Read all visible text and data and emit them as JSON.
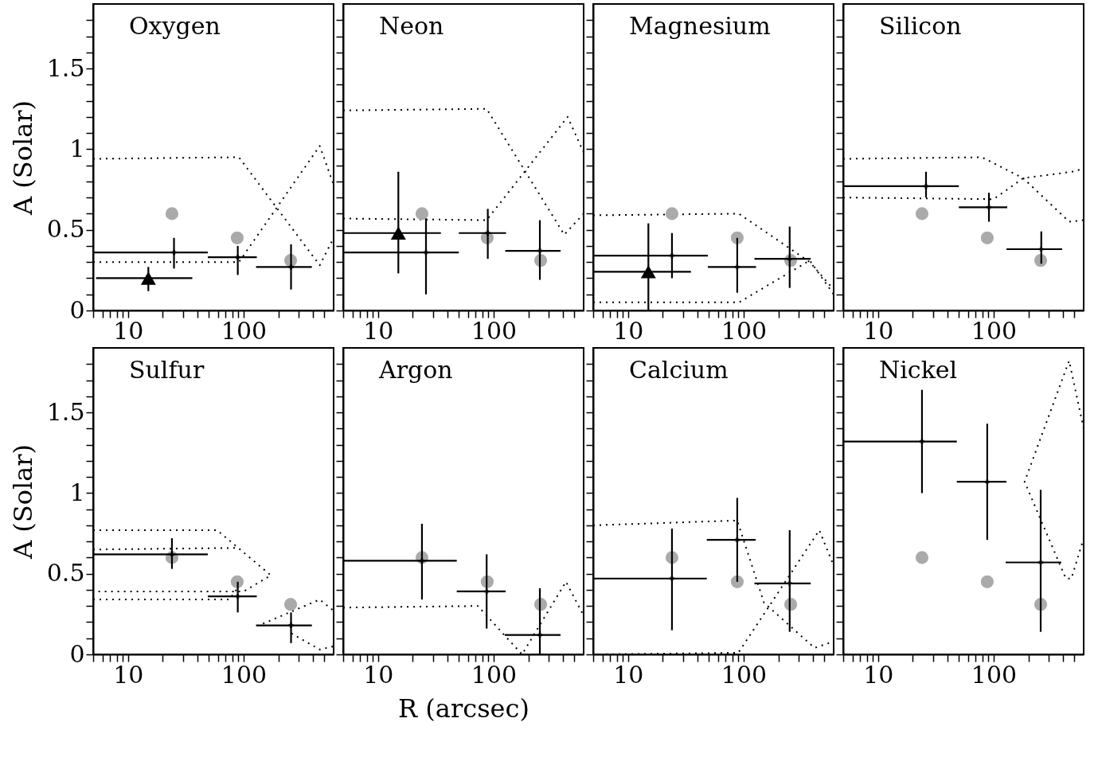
{
  "chart_data": [
    {
      "type": "scatter",
      "title": "Oxygen",
      "ylabel": "A (Solar)",
      "log": "x",
      "xlim": [
        5,
        600
      ],
      "ylim": [
        0,
        1.9
      ],
      "xticks": [
        {
          "value": 5,
          "label": null
        },
        {
          "value": 6,
          "label": null
        },
        {
          "value": 7,
          "label": null
        },
        {
          "value": 8,
          "label": null
        },
        {
          "value": 9,
          "label": null
        },
        10,
        {
          "value": 20,
          "label": null
        },
        {
          "value": 30,
          "label": null
        },
        {
          "value": 40,
          "label": null
        },
        {
          "value": 50,
          "label": null
        },
        {
          "value": 60,
          "label": null
        },
        {
          "value": 70,
          "label": null
        },
        {
          "value": 80,
          "label": null
        },
        {
          "value": 90,
          "label": null
        },
        100,
        {
          "value": 200,
          "label": null
        },
        {
          "value": 300,
          "label": null
        },
        {
          "value": 400,
          "label": null
        },
        {
          "value": 500,
          "label": null
        }
      ],
      "yticks": [
        0,
        {
          "value": 0.1,
          "label": null
        },
        {
          "value": 0.2,
          "label": null
        },
        {
          "value": 0.3,
          "label": null
        },
        {
          "value": 0.4,
          "label": null
        },
        0.5,
        {
          "value": 0.6,
          "label": null
        },
        {
          "value": 0.7,
          "label": null
        },
        {
          "value": 0.8,
          "label": null
        },
        {
          "value": 0.9,
          "label": null
        },
        1,
        {
          "value": 1.1,
          "label": null
        },
        {
          "value": 1.2,
          "label": null
        },
        {
          "value": 1.3,
          "label": null
        },
        {
          "value": 1.4,
          "label": null
        },
        1.5,
        {
          "value": 1.6,
          "label": null
        },
        {
          "value": 1.7,
          "label": null
        },
        {
          "value": 1.8,
          "label": null
        }
      ],
      "series": [
        {
          "type": "line",
          "line_style": "dotted",
          "color": "#000000",
          "x": [
            5,
            91,
            455,
            600
          ],
          "values": [
            0.94,
            0.95,
            0.28,
            0.45
          ]
        },
        {
          "type": "line",
          "line_style": "dotted",
          "color": "#000000",
          "x": [
            5,
            91,
            455,
            600
          ],
          "values": [
            0.3,
            0.3,
            1.02,
            0.78
          ]
        },
        {
          "type": "scatter",
          "marker": "circle",
          "color": "#aaaaaa",
          "x": [
            24,
            88,
            255
          ],
          "values": [
            0.6,
            0.45,
            0.31
          ]
        },
        {
          "type": "scatter",
          "marker": "cross",
          "color": "#000000",
          "x": [
            25,
            89,
            257
          ],
          "values": [
            0.36,
            0.33,
            0.27
          ],
          "xerrors": [
            [
              5,
              49
            ],
            [
              49,
              130
            ],
            [
              128,
              389
            ]
          ],
          "errors": [
            [
              0.26,
              0.45
            ],
            [
              0.22,
              0.4
            ],
            [
              0.13,
              0.41
            ]
          ]
        },
        {
          "type": "scatter",
          "marker": "triangle",
          "color": "#000000",
          "x": [
            15
          ],
          "values": [
            0.2
          ],
          "xerrors": [
            [
              5.3,
              36
            ]
          ],
          "errors": [
            [
              0.12,
              0.27
            ]
          ]
        }
      ]
    },
    {
      "type": "scatter",
      "title": "Neon",
      "tick_labels": "x",
      "log": "x",
      "xlim": [
        5,
        600
      ],
      "ylim": [
        0,
        1.9
      ],
      "xticks": [
        {
          "value": 5,
          "label": null
        },
        {
          "value": 6,
          "label": null
        },
        {
          "value": 7,
          "label": null
        },
        {
          "value": 8,
          "label": null
        },
        {
          "value": 9,
          "label": null
        },
        10,
        {
          "value": 20,
          "label": null
        },
        {
          "value": 30,
          "label": null
        },
        {
          "value": 40,
          "label": null
        },
        {
          "value": 50,
          "label": null
        },
        {
          "value": 60,
          "label": null
        },
        {
          "value": 70,
          "label": null
        },
        {
          "value": 80,
          "label": null
        },
        {
          "value": 90,
          "label": null
        },
        100,
        {
          "value": 200,
          "label": null
        },
        {
          "value": 300,
          "label": null
        },
        {
          "value": 400,
          "label": null
        },
        {
          "value": 500,
          "label": null
        }
      ],
      "yticks": [
        0,
        {
          "value": 0.1,
          "label": null
        },
        {
          "value": 0.2,
          "label": null
        },
        {
          "value": 0.3,
          "label": null
        },
        {
          "value": 0.4,
          "label": null
        },
        0.5,
        {
          "value": 0.6,
          "label": null
        },
        {
          "value": 0.7,
          "label": null
        },
        {
          "value": 0.8,
          "label": null
        },
        {
          "value": 0.9,
          "label": null
        },
        1,
        {
          "value": 1.1,
          "label": null
        },
        {
          "value": 1.2,
          "label": null
        },
        {
          "value": 1.3,
          "label": null
        },
        {
          "value": 1.4,
          "label": null
        },
        1.5,
        {
          "value": 1.6,
          "label": null
        },
        {
          "value": 1.7,
          "label": null
        },
        {
          "value": 1.8,
          "label": null
        }
      ],
      "series": [
        {
          "type": "line",
          "line_style": "dotted",
          "color": "#000000",
          "x": [
            5,
            87,
            408,
            600
          ],
          "values": [
            1.24,
            1.25,
            0.47,
            0.6
          ]
        },
        {
          "type": "line",
          "line_style": "dotted",
          "color": "#000000",
          "x": [
            5,
            87,
            436,
            600
          ],
          "values": [
            0.57,
            0.56,
            1.2,
            0.98
          ]
        },
        {
          "type": "scatter",
          "marker": "circle",
          "color": "#aaaaaa",
          "x": [
            24,
            88,
            255
          ],
          "values": [
            0.6,
            0.45,
            0.31
          ]
        },
        {
          "type": "scatter",
          "marker": "cross",
          "color": "#000000",
          "x": [
            26,
            89,
            251
          ],
          "values": [
            0.36,
            0.48,
            0.37
          ],
          "xerrors": [
            [
              5,
              50
            ],
            [
              50,
              128
            ],
            [
              126,
              379
            ]
          ],
          "errors": [
            [
              0.1,
              0.57
            ],
            [
              0.32,
              0.63
            ],
            [
              0.19,
              0.56
            ]
          ]
        },
        {
          "type": "scatter",
          "marker": "triangle",
          "color": "#000000",
          "x": [
            15
          ],
          "values": [
            0.48
          ],
          "xerrors": [
            [
              5,
              35
            ]
          ],
          "errors": [
            [
              0.23,
              0.86
            ]
          ]
        }
      ]
    },
    {
      "type": "scatter",
      "title": "Magnesium",
      "tick_labels": "x",
      "log": "x",
      "xlim": [
        5,
        600
      ],
      "ylim": [
        0,
        1.9
      ],
      "xticks": [
        {
          "value": 5,
          "label": null
        },
        {
          "value": 6,
          "label": null
        },
        {
          "value": 7,
          "label": null
        },
        {
          "value": 8,
          "label": null
        },
        {
          "value": 9,
          "label": null
        },
        10,
        {
          "value": 20,
          "label": null
        },
        {
          "value": 30,
          "label": null
        },
        {
          "value": 40,
          "label": null
        },
        {
          "value": 50,
          "label": null
        },
        {
          "value": 60,
          "label": null
        },
        {
          "value": 70,
          "label": null
        },
        {
          "value": 80,
          "label": null
        },
        {
          "value": 90,
          "label": null
        },
        100,
        {
          "value": 200,
          "label": null
        },
        {
          "value": 300,
          "label": null
        },
        {
          "value": 400,
          "label": null
        },
        {
          "value": 500,
          "label": null
        }
      ],
      "yticks": [
        0,
        {
          "value": 0.1,
          "label": null
        },
        {
          "value": 0.2,
          "label": null
        },
        {
          "value": 0.3,
          "label": null
        },
        {
          "value": 0.4,
          "label": null
        },
        0.5,
        {
          "value": 0.6,
          "label": null
        },
        {
          "value": 0.7,
          "label": null
        },
        {
          "value": 0.8,
          "label": null
        },
        {
          "value": 0.9,
          "label": null
        },
        1,
        {
          "value": 1.1,
          "label": null
        },
        {
          "value": 1.2,
          "label": null
        },
        {
          "value": 1.3,
          "label": null
        },
        {
          "value": 1.4,
          "label": null
        },
        1.5,
        {
          "value": 1.6,
          "label": null
        },
        {
          "value": 1.7,
          "label": null
        },
        {
          "value": 1.8,
          "label": null
        }
      ],
      "series": [
        {
          "type": "line",
          "line_style": "dotted",
          "color": "#000000",
          "x": [
            5,
            91,
            373,
            600
          ],
          "values": [
            0.59,
            0.6,
            0.3,
            0.13
          ]
        },
        {
          "type": "line",
          "line_style": "dotted",
          "color": "#000000",
          "x": [
            5,
            91,
            373,
            600
          ],
          "values": [
            0.05,
            0.05,
            0.31,
            0.1
          ]
        },
        {
          "type": "scatter",
          "marker": "circle",
          "color": "#aaaaaa",
          "x": [
            24,
            88,
            255
          ],
          "values": [
            0.6,
            0.45,
            0.31
          ]
        },
        {
          "type": "scatter",
          "marker": "cross",
          "color": "#000000",
          "x": [
            24,
            88,
            250
          ],
          "values": [
            0.34,
            0.27,
            0.32
          ],
          "xerrors": [
            [
              5,
              49
            ],
            [
              49,
              128
            ],
            [
              124,
              380
            ]
          ],
          "errors": [
            [
              0.2,
              0.48
            ],
            [
              0.11,
              0.45
            ],
            [
              0.14,
              0.52
            ]
          ]
        },
        {
          "type": "scatter",
          "marker": "triangle",
          "color": "#000000",
          "x": [
            15
          ],
          "values": [
            0.24
          ],
          "xerrors": [
            [
              5,
              35
            ]
          ],
          "errors": [
            [
              0,
              0.54
            ]
          ]
        }
      ]
    },
    {
      "type": "scatter",
      "title": "Silicon",
      "tick_labels": "x",
      "log": "x",
      "xlim": [
        5,
        600
      ],
      "ylim": [
        0,
        1.9
      ],
      "xticks": [
        {
          "value": 5,
          "label": null
        },
        {
          "value": 6,
          "label": null
        },
        {
          "value": 7,
          "label": null
        },
        {
          "value": 8,
          "label": null
        },
        {
          "value": 9,
          "label": null
        },
        10,
        {
          "value": 20,
          "label": null
        },
        {
          "value": 30,
          "label": null
        },
        {
          "value": 40,
          "label": null
        },
        {
          "value": 50,
          "label": null
        },
        {
          "value": 60,
          "label": null
        },
        {
          "value": 70,
          "label": null
        },
        {
          "value": 80,
          "label": null
        },
        {
          "value": 90,
          "label": null
        },
        100,
        {
          "value": 200,
          "label": null
        },
        {
          "value": 300,
          "label": null
        },
        {
          "value": 400,
          "label": null
        },
        {
          "value": 500,
          "label": null
        }
      ],
      "yticks": [
        0,
        {
          "value": 0.1,
          "label": null
        },
        {
          "value": 0.2,
          "label": null
        },
        {
          "value": 0.3,
          "label": null
        },
        {
          "value": 0.4,
          "label": null
        },
        0.5,
        {
          "value": 0.6,
          "label": null
        },
        {
          "value": 0.7,
          "label": null
        },
        {
          "value": 0.8,
          "label": null
        },
        {
          "value": 0.9,
          "label": null
        },
        1,
        {
          "value": 1.1,
          "label": null
        },
        {
          "value": 1.2,
          "label": null
        },
        {
          "value": 1.3,
          "label": null
        },
        {
          "value": 1.4,
          "label": null
        },
        1.5,
        {
          "value": 1.6,
          "label": null
        },
        {
          "value": 1.7,
          "label": null
        },
        {
          "value": 1.8,
          "label": null
        }
      ],
      "series": [
        {
          "type": "line",
          "line_style": "dotted",
          "color": "#000000",
          "x": [
            5,
            79,
            180,
            450,
            600
          ],
          "values": [
            0.94,
            0.95,
            0.82,
            0.55,
            0.56
          ]
        },
        {
          "type": "line",
          "line_style": "dotted",
          "color": "#000000",
          "x": [
            5,
            100,
            180,
            477,
            600
          ],
          "values": [
            0.7,
            0.69,
            0.82,
            0.86,
            0.88
          ]
        },
        {
          "type": "scatter",
          "marker": "circle",
          "color": "#aaaaaa",
          "x": [
            24,
            88,
            255
          ],
          "values": [
            0.6,
            0.45,
            0.31
          ]
        },
        {
          "type": "scatter",
          "marker": "cross",
          "color": "#000000",
          "x": [
            26,
            91,
            258
          ],
          "values": [
            0.77,
            0.64,
            0.38
          ],
          "xerrors": [
            [
              5,
              50
            ],
            [
              50,
              131
            ],
            [
              129,
              391
            ]
          ],
          "errors": [
            [
              0.7,
              0.86
            ],
            [
              0.55,
              0.73
            ],
            [
              0.29,
              0.49
            ]
          ]
        }
      ]
    },
    {
      "type": "scatter",
      "title": "Sulfur",
      "ylabel": "A (Solar)",
      "log": "x",
      "xlim": [
        5,
        600
      ],
      "ylim": [
        0,
        1.9
      ],
      "xticks": [
        {
          "value": 5,
          "label": null
        },
        {
          "value": 6,
          "label": null
        },
        {
          "value": 7,
          "label": null
        },
        {
          "value": 8,
          "label": null
        },
        {
          "value": 9,
          "label": null
        },
        10,
        {
          "value": 20,
          "label": null
        },
        {
          "value": 30,
          "label": null
        },
        {
          "value": 40,
          "label": null
        },
        {
          "value": 50,
          "label": null
        },
        {
          "value": 60,
          "label": null
        },
        {
          "value": 70,
          "label": null
        },
        {
          "value": 80,
          "label": null
        },
        {
          "value": 90,
          "label": null
        },
        100,
        {
          "value": 200,
          "label": null
        },
        {
          "value": 300,
          "label": null
        },
        {
          "value": 400,
          "label": null
        },
        {
          "value": 500,
          "label": null
        }
      ],
      "yticks": [
        0,
        {
          "value": 0.1,
          "label": null
        },
        {
          "value": 0.2,
          "label": null
        },
        {
          "value": 0.3,
          "label": null
        },
        {
          "value": 0.4,
          "label": null
        },
        0.5,
        {
          "value": 0.6,
          "label": null
        },
        {
          "value": 0.7,
          "label": null
        },
        {
          "value": 0.8,
          "label": null
        },
        {
          "value": 0.9,
          "label": null
        },
        1,
        {
          "value": 1.1,
          "label": null
        },
        {
          "value": 1.2,
          "label": null
        },
        {
          "value": 1.3,
          "label": null
        },
        {
          "value": 1.4,
          "label": null
        },
        1.5,
        {
          "value": 1.6,
          "label": null
        },
        {
          "value": 1.7,
          "label": null
        },
        {
          "value": 1.8,
          "label": null
        }
      ],
      "series": [
        {
          "type": "line",
          "line_style": "dotted",
          "color": "#000000",
          "x": [
            5,
            59,
            172,
            100,
            5
          ],
          "values": [
            0.77,
            0.77,
            0.49,
            0.39,
            0.39
          ]
        },
        {
          "type": "line",
          "line_style": "dotted",
          "color": "#000000",
          "x": [
            5,
            89
          ],
          "values": [
            0.65,
            0.66
          ]
        },
        {
          "type": "line",
          "line_style": "dotted",
          "color": "#000000",
          "x": [
            5,
            75,
            95
          ],
          "values": [
            0.34,
            0.34,
            0.44
          ]
        },
        {
          "type": "line",
          "line_style": "dotted",
          "color": "#000000",
          "x": [
            147,
            455,
            600
          ],
          "values": [
            0.19,
            0.34,
            0.27
          ]
        },
        {
          "type": "line",
          "line_style": "dotted",
          "color": "#000000",
          "x": [
            259,
            455,
            600
          ],
          "values": [
            0.13,
            0.03,
            0.05
          ]
        },
        {
          "type": "scatter",
          "marker": "circle",
          "color": "#aaaaaa",
          "x": [
            24,
            88,
            255
          ],
          "values": [
            0.6,
            0.45,
            0.31
          ]
        },
        {
          "type": "scatter",
          "marker": "cross",
          "color": "#000000",
          "x": [
            24,
            89,
            257
          ],
          "values": [
            0.62,
            0.36,
            0.18
          ],
          "xerrors": [
            [
              5,
              49
            ],
            [
              49,
              130
            ],
            [
              128,
              389
            ]
          ],
          "errors": [
            [
              0.53,
              0.72
            ],
            [
              0.26,
              0.45
            ],
            [
              0.07,
              0.26
            ]
          ]
        }
      ]
    },
    {
      "type": "scatter",
      "title": "Argon",
      "xlabel": "R (arcsec)",
      "tick_labels": "x",
      "log": "x",
      "xlim": [
        5,
        600
      ],
      "ylim": [
        0,
        1.9
      ],
      "xticks": [
        {
          "value": 5,
          "label": null
        },
        {
          "value": 6,
          "label": null
        },
        {
          "value": 7,
          "label": null
        },
        {
          "value": 8,
          "label": null
        },
        {
          "value": 9,
          "label": null
        },
        10,
        {
          "value": 20,
          "label": null
        },
        {
          "value": 30,
          "label": null
        },
        {
          "value": 40,
          "label": null
        },
        {
          "value": 50,
          "label": null
        },
        {
          "value": 60,
          "label": null
        },
        {
          "value": 70,
          "label": null
        },
        {
          "value": 80,
          "label": null
        },
        {
          "value": 90,
          "label": null
        },
        100,
        {
          "value": 200,
          "label": null
        },
        {
          "value": 300,
          "label": null
        },
        {
          "value": 400,
          "label": null
        },
        {
          "value": 500,
          "label": null
        }
      ],
      "yticks": [
        0,
        {
          "value": 0.1,
          "label": null
        },
        {
          "value": 0.2,
          "label": null
        },
        {
          "value": 0.3,
          "label": null
        },
        {
          "value": 0.4,
          "label": null
        },
        0.5,
        {
          "value": 0.6,
          "label": null
        },
        {
          "value": 0.7,
          "label": null
        },
        {
          "value": 0.8,
          "label": null
        },
        {
          "value": 0.9,
          "label": null
        },
        1,
        {
          "value": 1.1,
          "label": null
        },
        {
          "value": 1.2,
          "label": null
        },
        {
          "value": 1.3,
          "label": null
        },
        {
          "value": 1.4,
          "label": null
        },
        1.5,
        {
          "value": 1.6,
          "label": null
        },
        {
          "value": 1.7,
          "label": null
        },
        {
          "value": 1.8,
          "label": null
        }
      ],
      "series": [
        {
          "type": "line",
          "line_style": "dotted",
          "color": "#000000",
          "x": [
            5,
            73,
            176,
            422,
            600
          ],
          "values": [
            0.29,
            0.3,
            0,
            0.45,
            0.24
          ]
        },
        {
          "type": "scatter",
          "marker": "circle",
          "color": "#aaaaaa",
          "x": [
            24,
            88,
            255
          ],
          "values": [
            0.6,
            0.45,
            0.31
          ]
        },
        {
          "type": "scatter",
          "marker": "cross",
          "color": "#000000",
          "x": [
            24,
            87,
            251
          ],
          "values": [
            0.58,
            0.39,
            0.12
          ],
          "xerrors": [
            [
              5,
              48
            ],
            [
              48,
              127
            ],
            [
              125,
              379
            ]
          ],
          "errors": [
            [
              0.34,
              0.81
            ],
            [
              0.16,
              0.62
            ],
            [
              0,
              0.41
            ]
          ]
        }
      ]
    },
    {
      "type": "scatter",
      "title": "Calcium",
      "tick_labels": "x",
      "log": "x",
      "xlim": [
        5,
        600
      ],
      "ylim": [
        0,
        1.9
      ],
      "xticks": [
        {
          "value": 5,
          "label": null
        },
        {
          "value": 6,
          "label": null
        },
        {
          "value": 7,
          "label": null
        },
        {
          "value": 8,
          "label": null
        },
        {
          "value": 9,
          "label": null
        },
        10,
        {
          "value": 20,
          "label": null
        },
        {
          "value": 30,
          "label": null
        },
        {
          "value": 40,
          "label": null
        },
        {
          "value": 50,
          "label": null
        },
        {
          "value": 60,
          "label": null
        },
        {
          "value": 70,
          "label": null
        },
        {
          "value": 80,
          "label": null
        },
        {
          "value": 90,
          "label": null
        },
        100,
        {
          "value": 200,
          "label": null
        },
        {
          "value": 300,
          "label": null
        },
        {
          "value": 400,
          "label": null
        },
        {
          "value": 500,
          "label": null
        }
      ],
      "yticks": [
        0,
        {
          "value": 0.1,
          "label": null
        },
        {
          "value": 0.2,
          "label": null
        },
        {
          "value": 0.3,
          "label": null
        },
        {
          "value": 0.4,
          "label": null
        },
        0.5,
        {
          "value": 0.6,
          "label": null
        },
        {
          "value": 0.7,
          "label": null
        },
        {
          "value": 0.8,
          "label": null
        },
        {
          "value": 0.9,
          "label": null
        },
        1,
        {
          "value": 1.1,
          "label": null
        },
        {
          "value": 1.2,
          "label": null
        },
        {
          "value": 1.3,
          "label": null
        },
        {
          "value": 1.4,
          "label": null
        },
        1.5,
        {
          "value": 1.6,
          "label": null
        },
        {
          "value": 1.7,
          "label": null
        },
        {
          "value": 1.8,
          "label": null
        }
      ],
      "series": [
        {
          "type": "line",
          "line_style": "dotted",
          "color": "#000000",
          "x": [
            5,
            88,
            150,
            410,
            600
          ],
          "values": [
            0.8,
            0.83,
            0.32,
            0.04,
            0.08
          ]
        },
        {
          "type": "line",
          "line_style": "dotted",
          "color": "#000000",
          "x": [
            5,
            90,
            451,
            600
          ],
          "values": [
            0,
            0.01,
            0.77,
            0.55
          ]
        },
        {
          "type": "scatter",
          "marker": "circle",
          "color": "#aaaaaa",
          "x": [
            24,
            88,
            255
          ],
          "values": [
            0.6,
            0.45,
            0.31
          ]
        },
        {
          "type": "scatter",
          "marker": "cross",
          "color": "#000000",
          "x": [
            24,
            88,
            250
          ],
          "values": [
            0.47,
            0.71,
            0.44
          ],
          "xerrors": [
            [
              5,
              48
            ],
            [
              48,
              127
            ],
            [
              124,
              380
            ]
          ],
          "errors": [
            [
              0.15,
              0.78
            ],
            [
              0.45,
              0.97
            ],
            [
              0.14,
              0.77
            ]
          ]
        }
      ]
    },
    {
      "type": "scatter",
      "title": "Nickel",
      "tick_labels": "x",
      "log": "x",
      "xlim": [
        5,
        600
      ],
      "ylim": [
        0,
        1.9
      ],
      "xticks": [
        {
          "value": 5,
          "label": null
        },
        {
          "value": 6,
          "label": null
        },
        {
          "value": 7,
          "label": null
        },
        {
          "value": 8,
          "label": null
        },
        {
          "value": 9,
          "label": null
        },
        10,
        {
          "value": 20,
          "label": null
        },
        {
          "value": 30,
          "label": null
        },
        {
          "value": 40,
          "label": null
        },
        {
          "value": 50,
          "label": null
        },
        {
          "value": 60,
          "label": null
        },
        {
          "value": 70,
          "label": null
        },
        {
          "value": 80,
          "label": null
        },
        {
          "value": 90,
          "label": null
        },
        100,
        {
          "value": 200,
          "label": null
        },
        {
          "value": 300,
          "label": null
        },
        {
          "value": 400,
          "label": null
        },
        {
          "value": 500,
          "label": null
        }
      ],
      "yticks": [
        0,
        {
          "value": 0.1,
          "label": null
        },
        {
          "value": 0.2,
          "label": null
        },
        {
          "value": 0.3,
          "label": null
        },
        {
          "value": 0.4,
          "label": null
        },
        0.5,
        {
          "value": 0.6,
          "label": null
        },
        {
          "value": 0.7,
          "label": null
        },
        {
          "value": 0.8,
          "label": null
        },
        {
          "value": 0.9,
          "label": null
        },
        1,
        {
          "value": 1.1,
          "label": null
        },
        {
          "value": 1.2,
          "label": null
        },
        {
          "value": 1.3,
          "label": null
        },
        {
          "value": 1.4,
          "label": null
        },
        1.5,
        {
          "value": 1.6,
          "label": null
        },
        {
          "value": 1.7,
          "label": null
        },
        {
          "value": 1.8,
          "label": null
        }
      ],
      "series": [
        {
          "type": "line",
          "line_style": "dotted",
          "color": "#000000",
          "x": [
            600,
            449,
            185,
            421,
            470,
            600
          ],
          "values": [
            1.4,
            1.82,
            1.07,
            0.47,
            0.47,
            0.72
          ]
        },
        {
          "type": "scatter",
          "marker": "circle",
          "color": "#aaaaaa",
          "x": [
            24,
            88,
            255
          ],
          "values": [
            0.6,
            0.45,
            0.31
          ]
        },
        {
          "type": "scatter",
          "marker": "cross",
          "color": "#000000",
          "x": [
            24,
            88,
            255
          ],
          "values": [
            1.32,
            1.07,
            0.57
          ],
          "xerrors": [
            [
              5,
              48
            ],
            [
              48,
              129
            ],
            [
              127,
              384
            ]
          ],
          "errors": [
            [
              1.0,
              1.64
            ],
            [
              0.71,
              1.43
            ],
            [
              0.14,
              1.02
            ]
          ]
        }
      ]
    }
  ]
}
